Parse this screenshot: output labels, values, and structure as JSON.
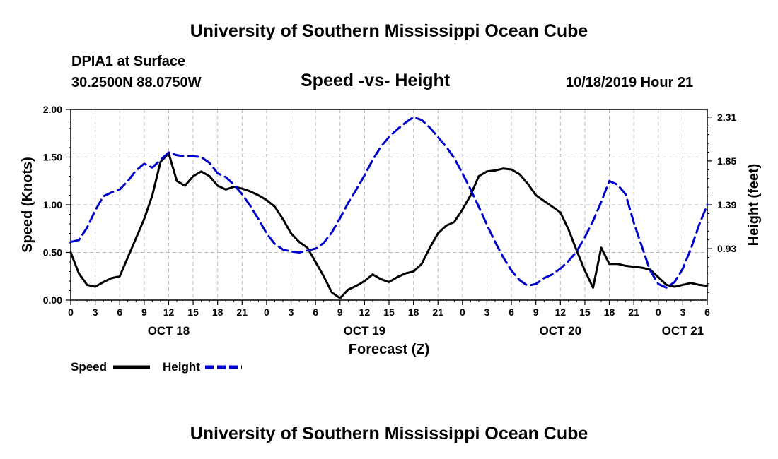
{
  "page": {
    "title_top": "University of Southern Mississippi Ocean Cube",
    "title_bottom": "University of Southern Mississippi Ocean Cube",
    "station": "DPIA1 at Surface",
    "coords": "30.2500N 88.0750W",
    "subtitle": "Speed -vs- Height",
    "datetime": "10/18/2019 Hour 21"
  },
  "chart_data": {
    "type": "line",
    "title": "Speed -vs- Height",
    "xlabel": "Forecast (Z)",
    "ylabel": "Speed (Knots)",
    "y2label": "Height (feet)",
    "xlim": [
      0,
      78
    ],
    "ylim": [
      0,
      2.0
    ],
    "y2lim": [
      0.39,
      2.39
    ],
    "grid": true,
    "legend_position": "bottom-left",
    "x_tick_labels": [
      "0",
      "3",
      "6",
      "9",
      "12",
      "15",
      "18",
      "21",
      "0",
      "3",
      "6",
      "9",
      "12",
      "15",
      "18",
      "21",
      "0",
      "3",
      "6",
      "9",
      "12",
      "15",
      "18",
      "21",
      "0",
      "3",
      "6"
    ],
    "date_labels": [
      {
        "label": "OCT 18",
        "x": 12
      },
      {
        "label": "OCT 19",
        "x": 36
      },
      {
        "label": "OCT 20",
        "x": 60
      },
      {
        "label": "OCT 21",
        "x": 75
      }
    ],
    "y_ticks": [
      "0.00",
      "0.50",
      "1.00",
      "1.50",
      "2.00"
    ],
    "y2_ticks": [
      "0.93",
      "1.39",
      "1.85",
      "2.31"
    ],
    "series": [
      {
        "name": "Speed",
        "color": "#000000",
        "dash": "solid",
        "axis": "left",
        "x": [
          0,
          1,
          2,
          3,
          4,
          5,
          6,
          7,
          8,
          9,
          10,
          11,
          12,
          13,
          14,
          15,
          16,
          17,
          18,
          19,
          20,
          21,
          22,
          23,
          24,
          25,
          26,
          27,
          28,
          29,
          30,
          31,
          32,
          33,
          34,
          35,
          36,
          37,
          38,
          39,
          40,
          41,
          42,
          43,
          44,
          45,
          46,
          47,
          48,
          49,
          50,
          51,
          52,
          53,
          54,
          55,
          56,
          57,
          58,
          59,
          60,
          61,
          62,
          63,
          64,
          65,
          66,
          67,
          68,
          69,
          70,
          71,
          72,
          73,
          74,
          75,
          76,
          77,
          78
        ],
        "values": [
          0.5,
          0.28,
          0.16,
          0.14,
          0.19,
          0.23,
          0.25,
          0.45,
          0.65,
          0.85,
          1.1,
          1.45,
          1.54,
          1.25,
          1.2,
          1.3,
          1.35,
          1.3,
          1.2,
          1.16,
          1.19,
          1.17,
          1.14,
          1.1,
          1.05,
          0.98,
          0.85,
          0.7,
          0.61,
          0.55,
          0.4,
          0.25,
          0.08,
          0.02,
          0.11,
          0.15,
          0.2,
          0.27,
          0.22,
          0.19,
          0.24,
          0.28,
          0.3,
          0.38,
          0.55,
          0.7,
          0.78,
          0.82,
          0.95,
          1.1,
          1.3,
          1.35,
          1.36,
          1.38,
          1.37,
          1.32,
          1.22,
          1.1,
          1.04,
          0.98,
          0.92,
          0.74,
          0.52,
          0.31,
          0.13,
          0.55,
          0.38,
          0.38,
          0.36,
          0.35,
          0.34,
          0.32,
          0.24,
          0.16,
          0.14,
          0.16,
          0.18,
          0.16,
          0.15
        ]
      },
      {
        "name": "Height",
        "color": "#0000cc",
        "dash": "dashed",
        "axis": "right",
        "x": [
          0,
          1,
          2,
          3,
          4,
          5,
          6,
          7,
          8,
          9,
          10,
          11,
          12,
          13,
          14,
          15,
          16,
          17,
          18,
          19,
          20,
          21,
          22,
          23,
          24,
          25,
          26,
          27,
          28,
          29,
          30,
          31,
          32,
          33,
          34,
          35,
          36,
          37,
          38,
          39,
          40,
          41,
          42,
          43,
          44,
          45,
          46,
          47,
          48,
          49,
          50,
          51,
          52,
          53,
          54,
          55,
          56,
          57,
          58,
          59,
          60,
          61,
          62,
          63,
          64,
          65,
          66,
          67,
          68,
          69,
          70,
          71,
          72,
          73,
          74,
          75,
          76,
          77,
          78
        ],
        "values": [
          1.0,
          1.02,
          1.15,
          1.33,
          1.48,
          1.52,
          1.55,
          1.64,
          1.75,
          1.82,
          1.78,
          1.86,
          1.94,
          1.91,
          1.9,
          1.9,
          1.89,
          1.83,
          1.72,
          1.68,
          1.6,
          1.5,
          1.38,
          1.24,
          1.09,
          0.98,
          0.92,
          0.9,
          0.89,
          0.91,
          0.93,
          0.99,
          1.1,
          1.25,
          1.41,
          1.55,
          1.7,
          1.86,
          2.0,
          2.1,
          2.18,
          2.25,
          2.31,
          2.28,
          2.2,
          2.1,
          2.0,
          1.88,
          1.72,
          1.55,
          1.37,
          1.18,
          1.0,
          0.84,
          0.7,
          0.6,
          0.54,
          0.56,
          0.62,
          0.66,
          0.72,
          0.8,
          0.9,
          1.05,
          1.22,
          1.42,
          1.64,
          1.6,
          1.5,
          1.2,
          0.95,
          0.7,
          0.56,
          0.52,
          0.58,
          0.72,
          0.93,
          1.18,
          1.39
        ]
      }
    ]
  }
}
